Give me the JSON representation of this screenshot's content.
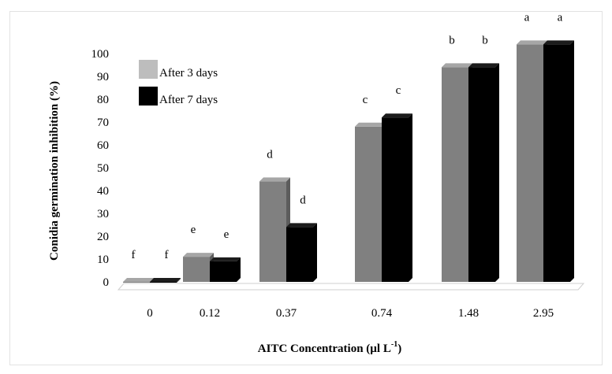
{
  "chart_data": {
    "type": "bar",
    "style": "3d-clustered",
    "categories": [
      "0",
      "0.12",
      "0.37",
      "0.74",
      "1.48",
      "2.95"
    ],
    "series": [
      {
        "name": "After 3 days",
        "color": "#808080",
        "legend_color": "#bdbdbd",
        "values": [
          0,
          11,
          44,
          68,
          94,
          104
        ],
        "labels": [
          "f",
          "e",
          "d",
          "c",
          "b",
          "a"
        ]
      },
      {
        "name": "After 7 days",
        "color": "#000000",
        "legend_color": "#000000",
        "values": [
          0,
          9,
          24,
          72,
          94,
          104
        ],
        "labels": [
          "f",
          "e",
          "d",
          "c",
          "b",
          "a"
        ]
      }
    ],
    "y_ticks": [
      0,
      10,
      20,
      30,
      40,
      50,
      60,
      70,
      80,
      90,
      100
    ],
    "ylim": [
      0,
      100
    ],
    "xlabel": "AITC Concentration (µl L",
    "xlabel_sup": "-1",
    "xlabel_close": ")",
    "ylabel": "Conidia germination inhibition (%)",
    "legend_position": "top-left",
    "grid": false
  }
}
